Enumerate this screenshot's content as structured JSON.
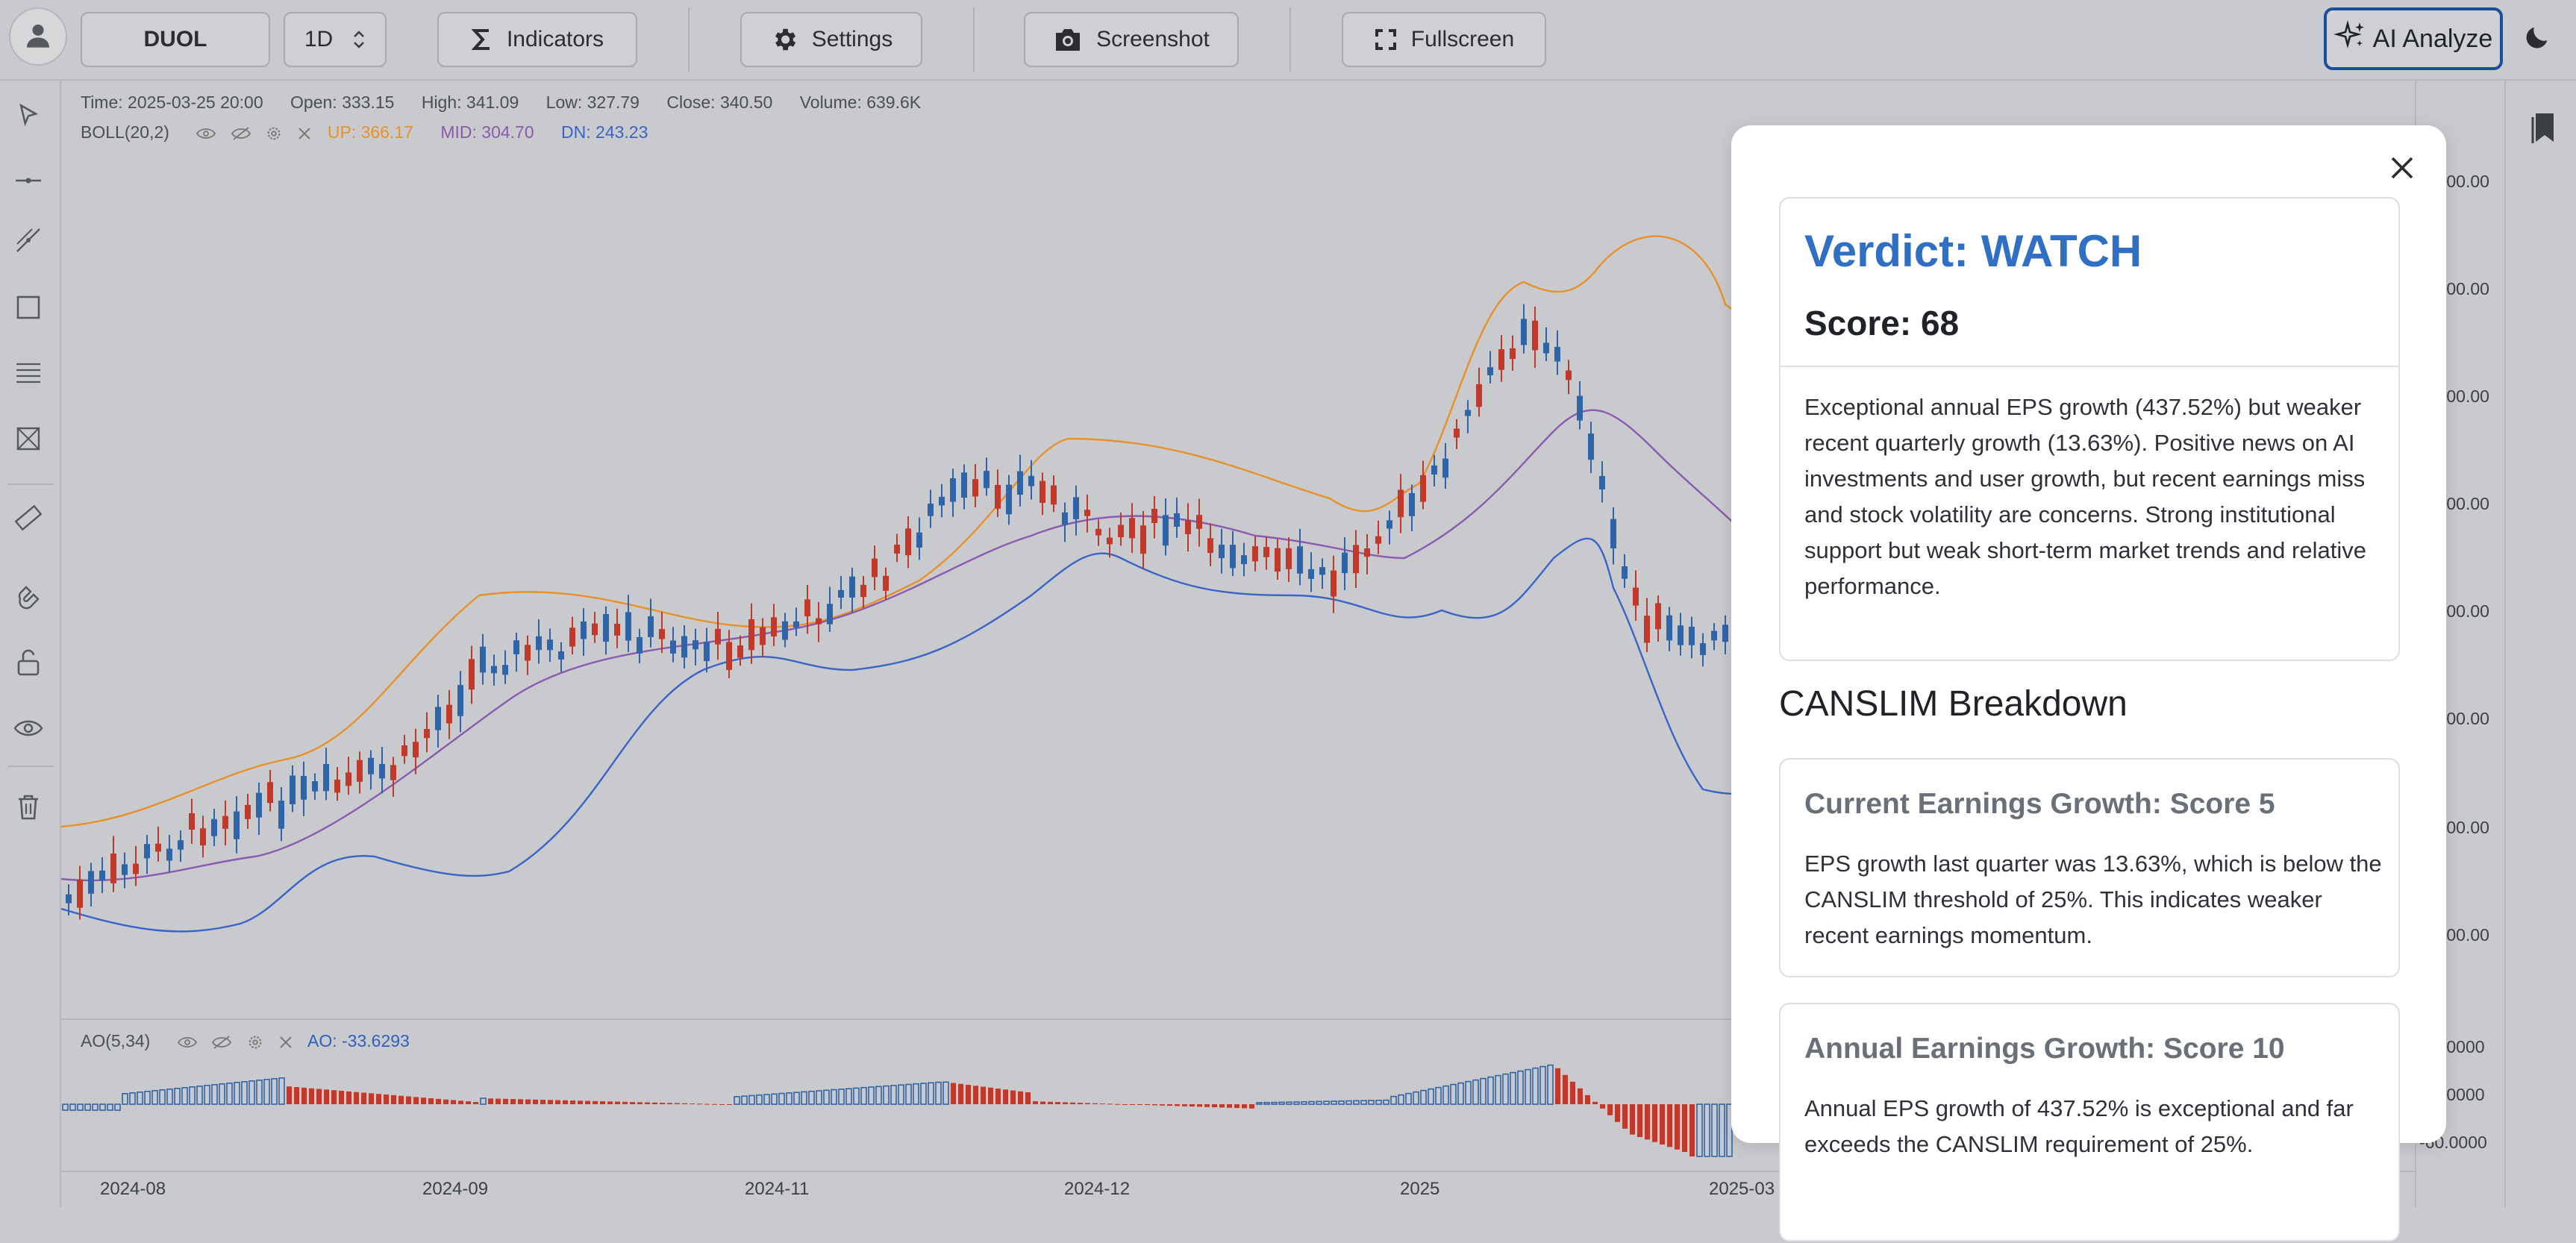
{
  "toolbar": {
    "symbol": "DUOL",
    "interval": "1D",
    "indicators_label": "Indicators",
    "settings_label": "Settings",
    "screenshot_label": "Screenshot",
    "fullscreen_label": "Fullscreen",
    "ai_label": "AI Analyze"
  },
  "ohlc": {
    "time": "Time: 2025-03-25 20:00",
    "open": "Open: 333.15",
    "high": "High: 341.09",
    "low": "Low: 327.79",
    "close": "Close: 340.50",
    "volume": "Volume: 639.6K"
  },
  "boll": {
    "name": "BOLL(20,2)",
    "up": "UP: 366.17",
    "mid": "MID: 304.70",
    "dn": "DN: 243.23",
    "up_color": "#e8902a",
    "mid_color": "#8a5bb0",
    "dn_color": "#3a64c8"
  },
  "ao": {
    "name": "AO(5,34)",
    "value": "AO: -33.6293",
    "value_color": "#2f5fbf"
  },
  "price_axis": [
    ".00.00",
    ".00.00",
    ".00.00",
    ".00.00",
    ".00.00",
    ".00.00",
    ".00.00",
    ".00.00"
  ],
  "ao_axis": [
    ".0000",
    ".0000",
    "-60.0000"
  ],
  "dates": [
    "2024-08",
    "2024-09",
    "2024-11",
    "2024-12",
    "2025",
    "2025-03"
  ],
  "colors": {
    "up_candle": "#2f65a8",
    "down_candle": "#c0392b",
    "accent": "#2f6fc4"
  },
  "modal": {
    "verdict": "Verdict: WATCH",
    "score": "Score: 68",
    "summary": "Exceptional annual EPS growth (437.52%) but weaker recent quarterly growth (13.63%). Positive news on AI investments and user growth, but recent earnings miss and stock volatility are concerns. Strong institutional support but weak short-term market trends and relative performance.",
    "section_title": "CANSLIM Breakdown",
    "items": [
      {
        "title": "Current Earnings Growth: Score 5",
        "text": "EPS growth last quarter was 13.63%, which is below the CANSLIM threshold of 25%. This indicates weaker recent earnings momentum."
      },
      {
        "title": "Annual Earnings Growth: Score 10",
        "text": "Annual EPS growth of 437.52% is exceptional and far exceeds the CANSLIM requirement of 25%."
      }
    ]
  }
}
